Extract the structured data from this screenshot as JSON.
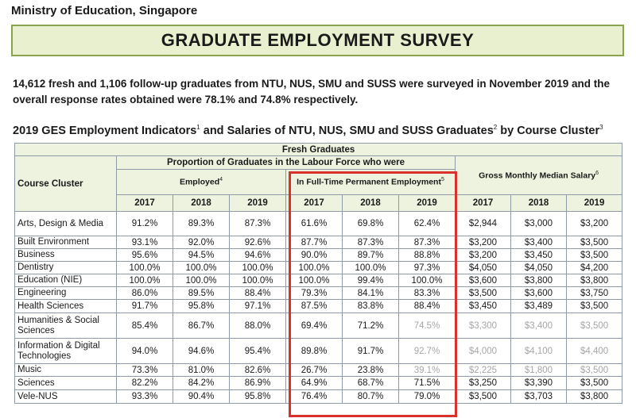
{
  "header": {
    "ministry": "Ministry of Education, Singapore",
    "banner": "GRADUATE EMPLOYMENT SURVEY",
    "intro": "14,612 fresh and 1,106 follow-up graduates from NTU, NUS, SMU and SUSS were surveyed in November 2019 and the overall response rates obtained were 78.1% and 74.8% respectively."
  },
  "table_title": {
    "part1": "2019 GES Employment Indicators",
    "sup1": "1",
    "part2": " and Salaries of NTU, NUS, SMU and SUSS Graduates",
    "sup2": "2",
    "part3": " by Course Cluster",
    "sup3": "3"
  },
  "table": {
    "top_header": "Fresh Graduates",
    "proportion_header": "Proportion of Graduates in the Labour Force who were",
    "employed_header": "Employed",
    "employed_sup": "4",
    "fulltime_header": "In Full-Time Permanent Employment",
    "fulltime_sup": "5",
    "salary_header": "Gross Monthly Median Salary",
    "salary_sup": "6",
    "course_cluster_header": "Course Cluster",
    "years": [
      "2017",
      "2018",
      "2019"
    ],
    "rows": [
      {
        "name": "Arts, Design & Media",
        "emp": [
          "91.2%",
          "89.3%",
          "87.3%"
        ],
        "ft": [
          "61.6%",
          "69.8%",
          "62.4%"
        ],
        "sal": [
          "$2,944",
          "$3,000",
          "$3,200"
        ]
      },
      {
        "name": "Built Environment",
        "emp": [
          "93.1%",
          "92.0%",
          "92.6%"
        ],
        "ft": [
          "87.7%",
          "87.3%",
          "87.3%"
        ],
        "sal": [
          "$3,200",
          "$3,400",
          "$3,500"
        ]
      },
      {
        "name": "Business",
        "emp": [
          "95.6%",
          "94.5%",
          "94.6%"
        ],
        "ft": [
          "90.0%",
          "89.7%",
          "88.8%"
        ],
        "sal": [
          "$3,200",
          "$3,450",
          "$3,500"
        ]
      },
      {
        "name": "Dentistry",
        "emp": [
          "100.0%",
          "100.0%",
          "100.0%"
        ],
        "ft": [
          "100.0%",
          "100.0%",
          "97.3%"
        ],
        "sal": [
          "$4,050",
          "$4,050",
          "$4,200"
        ]
      },
      {
        "name": "Education (NIE)",
        "emp": [
          "100.0%",
          "100.0%",
          "100.0%"
        ],
        "ft": [
          "100.0%",
          "99.4%",
          "100.0%"
        ],
        "sal": [
          "$3,600",
          "$3,800",
          "$3,800"
        ]
      },
      {
        "name": "Engineering",
        "emp": [
          "86.0%",
          "89.5%",
          "88.4%"
        ],
        "ft": [
          "79.3%",
          "84.1%",
          "83.3%"
        ],
        "sal": [
          "$3,500",
          "$3,600",
          "$3,750"
        ]
      },
      {
        "name": "Health Sciences",
        "emp": [
          "91.7%",
          "95.8%",
          "97.1%"
        ],
        "ft": [
          "87.5%",
          "83.8%",
          "88.4%"
        ],
        "sal": [
          "$3,450",
          "$3,489",
          "$3,500"
        ]
      },
      {
        "name": "Humanities & Social Sciences",
        "emp": [
          "85.4%",
          "86.7%",
          "88.0%"
        ],
        "ft": [
          "69.4%",
          "71.2%",
          "74.5%"
        ],
        "sal": [
          "$3,300",
          "$3,400",
          "$3,500"
        ]
      },
      {
        "name": "Information & Digital Technologies",
        "emp": [
          "94.0%",
          "94.6%",
          "95.4%"
        ],
        "ft": [
          "89.8%",
          "91.7%",
          "92.7%"
        ],
        "sal": [
          "$4,000",
          "$4,100",
          "$4,400"
        ]
      },
      {
        "name": "Music",
        "emp": [
          "73.3%",
          "81.0%",
          "82.6%"
        ],
        "ft": [
          "26.7%",
          "23.8%",
          "39.1%"
        ],
        "sal": [
          "$2,225",
          "$1,800",
          "$3,500"
        ]
      },
      {
        "name": "Sciences",
        "emp": [
          "82.2%",
          "84.2%",
          "86.9%"
        ],
        "ft": [
          "64.9%",
          "68.7%",
          "71.5%"
        ],
        "sal": [
          "$3,250",
          "$3,390",
          "$3,500"
        ]
      },
      {
        "name": "Vele-NUS",
        "emp": [
          "93.3%",
          "90.4%",
          "95.8%"
        ],
        "ft": [
          "76.4%",
          "80.7%",
          "79.0%"
        ],
        "sal": [
          "$3,500",
          "$3,703",
          "$3,800"
        ]
      }
    ]
  }
}
